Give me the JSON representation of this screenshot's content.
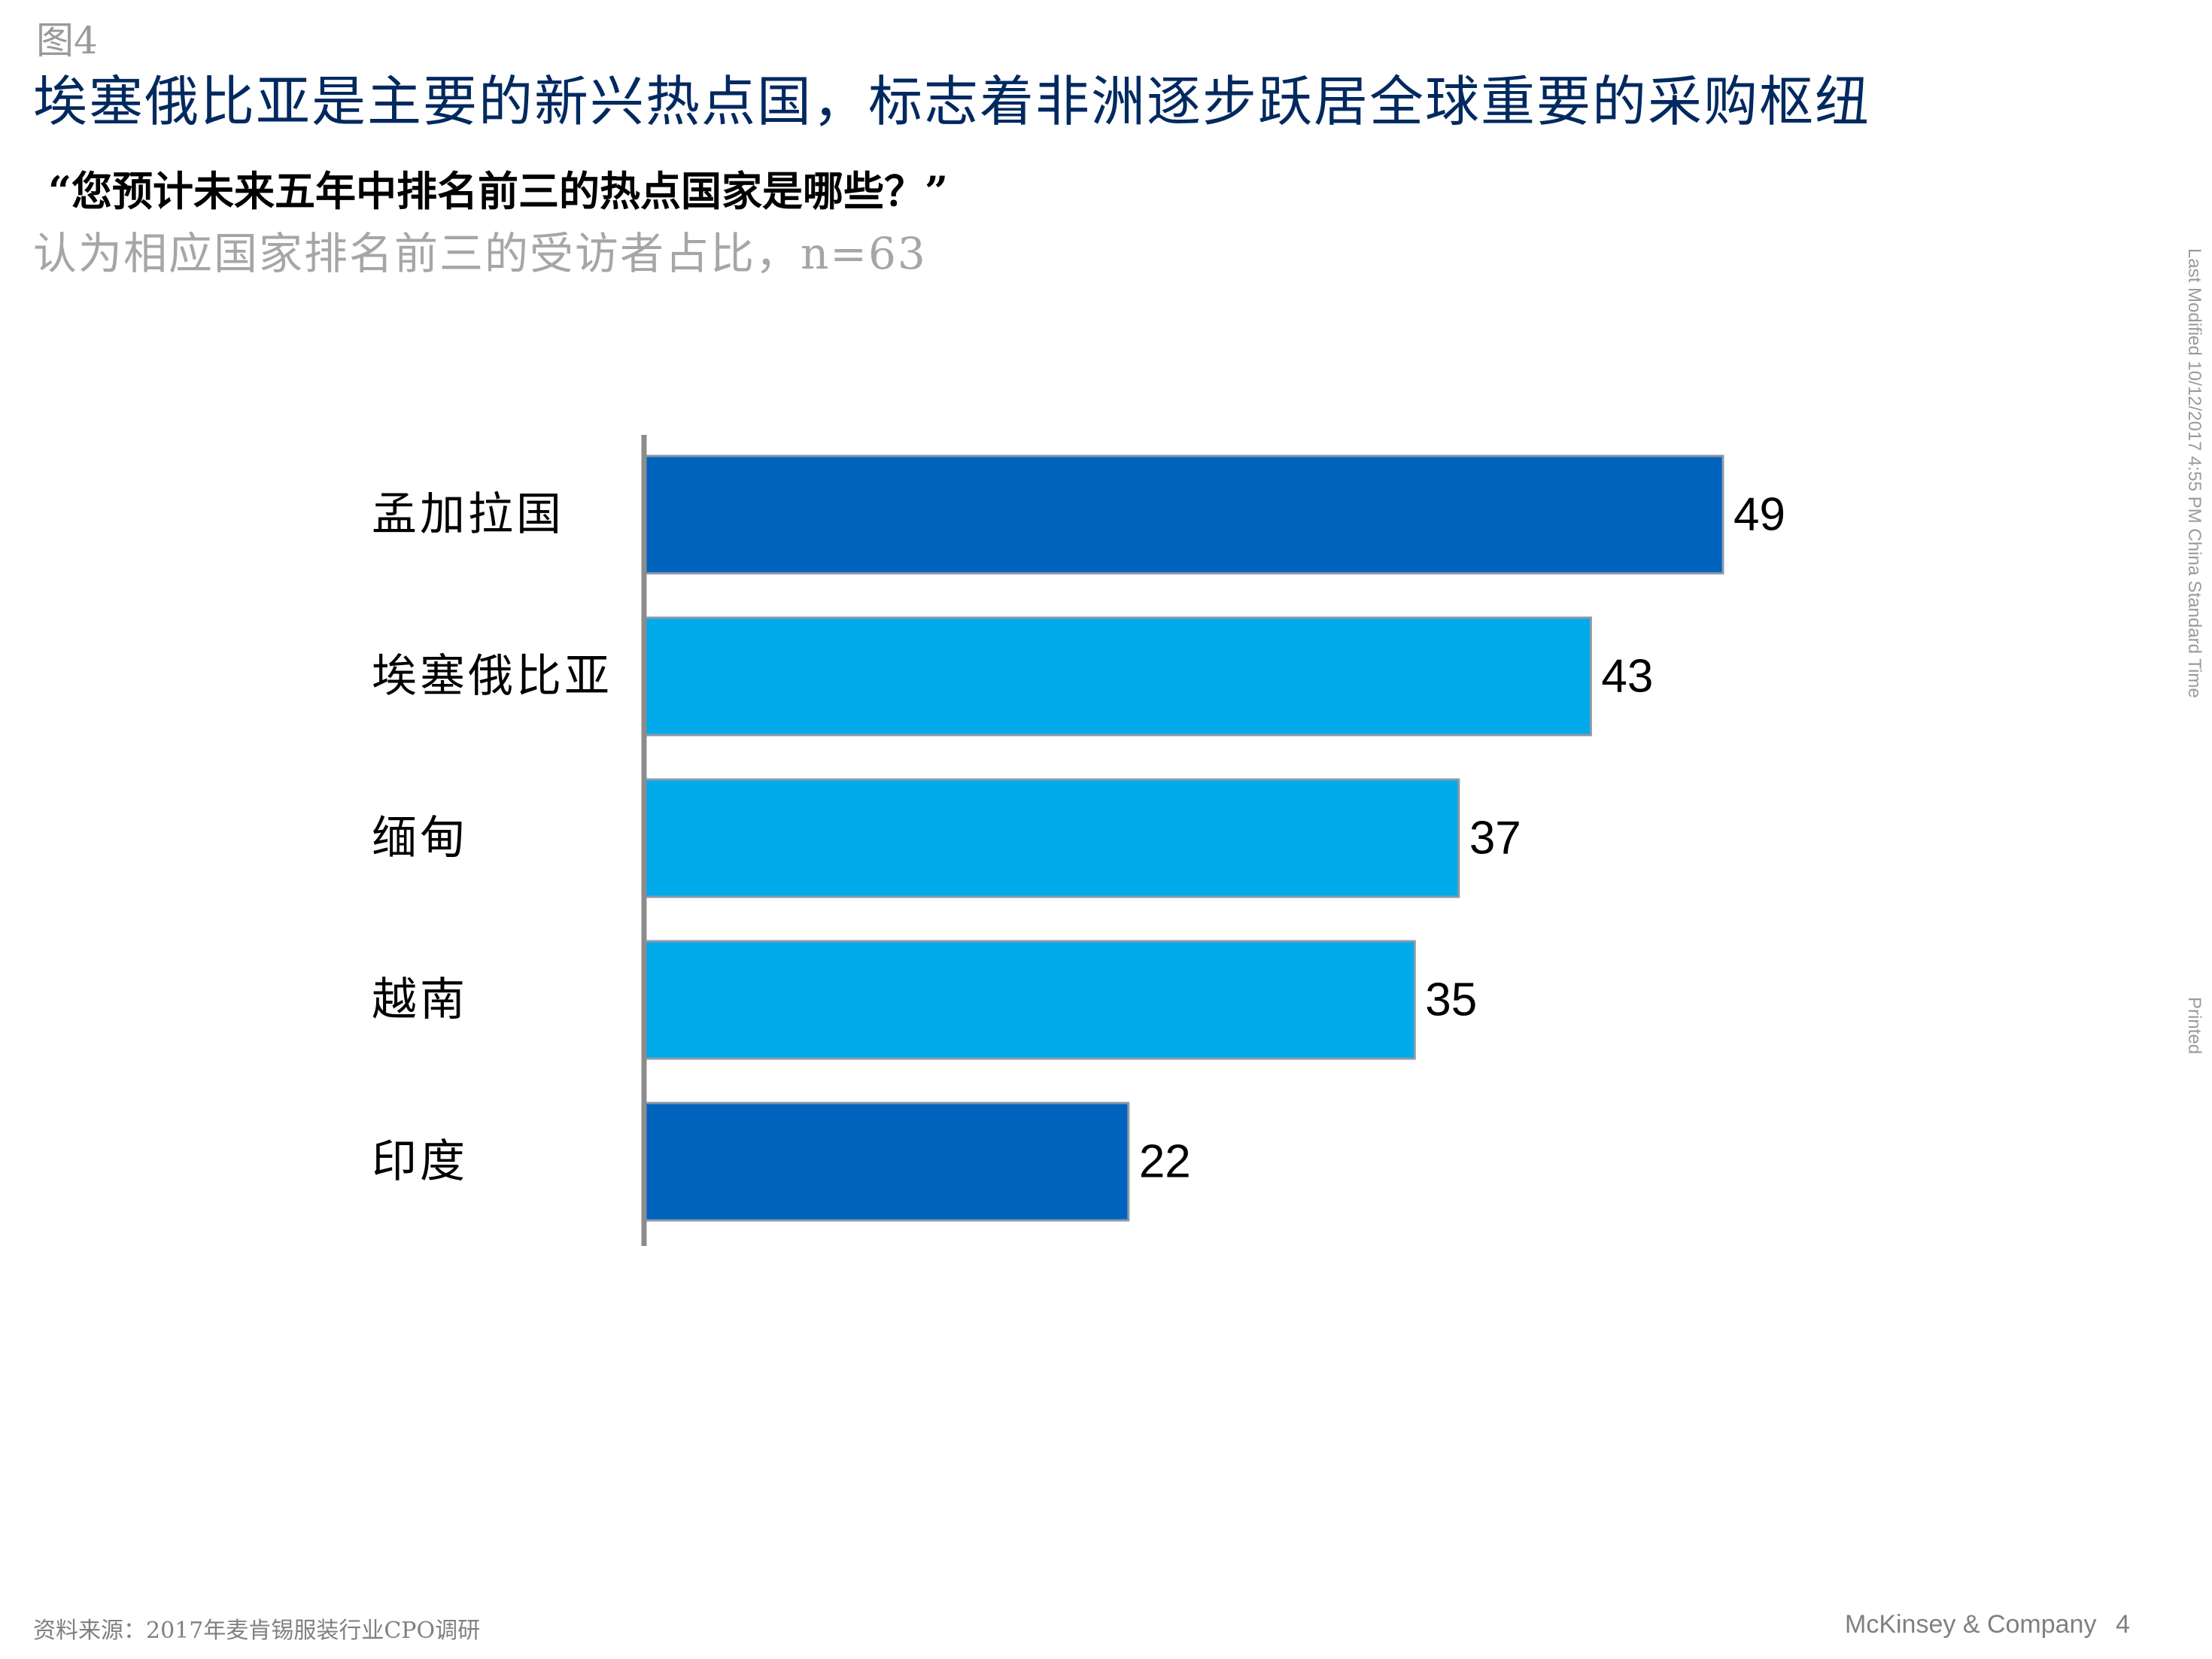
{
  "figure_label": "图4",
  "title": "埃塞俄比亚是主要的新兴热点国，标志着非洲逐步跃居全球重要的采购枢纽",
  "question": "“您预计未来五年中排名前三的热点国家是哪些？”",
  "subtitle": "认为相应国家排名前三的受访者占比，n=63",
  "footer": {
    "source": "资料来源：2017年麦肯锡服装行业CPO调研",
    "brand": "McKinsey & Company",
    "page": "4"
  },
  "side": {
    "last_modified": "Last Modified 10/12/2017 4:55 PM China Standard Time",
    "printed": "Printed"
  },
  "colors": {
    "dark_blue": "#0063be",
    "light_blue": "#00aaeb",
    "title_navy": "#002960",
    "axis_gray": "#8c8c8c"
  },
  "chart_data": {
    "type": "bar",
    "orientation": "horizontal",
    "categories": [
      "孟加拉国",
      "埃塞俄比亚",
      "缅甸",
      "越南",
      "印度"
    ],
    "values": [
      49,
      43,
      37,
      35,
      22
    ],
    "bar_colors": [
      "#0063be",
      "#00aaeb",
      "#00aaeb",
      "#00aaeb",
      "#0063be"
    ],
    "xlim": [
      0,
      49
    ],
    "grid": false,
    "legend": "none"
  }
}
